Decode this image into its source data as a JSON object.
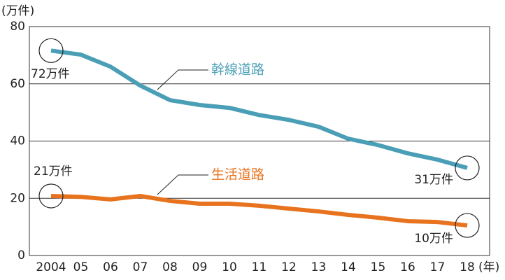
{
  "chart_data": {
    "type": "line",
    "y_unit_label": "(万件)",
    "x_unit_label": "(年)",
    "categories": [
      "2004",
      "05",
      "06",
      "07",
      "08",
      "09",
      "10",
      "11",
      "12",
      "13",
      "14",
      "15",
      "16",
      "17",
      "18"
    ],
    "series": [
      {
        "name": "幹線道路",
        "color": "#4a9fb6",
        "values": [
          71.6,
          70.2,
          66,
          59.4,
          54.3,
          52.6,
          51.6,
          49.1,
          47.4,
          45,
          40.8,
          38.6,
          35.7,
          33.5,
          30.6
        ]
      },
      {
        "name": "生活道路",
        "color": "#e8731f",
        "values": [
          20.8,
          20.5,
          19.6,
          20.8,
          19.1,
          18.1,
          18.1,
          17.4,
          16.4,
          15.4,
          14.2,
          13.2,
          12,
          11.7,
          10.5
        ]
      }
    ],
    "annotations": [
      "72万件",
      "31万件",
      "21万件",
      "10万件"
    ],
    "ylim": [
      0,
      80
    ],
    "yticks": [
      0,
      20,
      40,
      60,
      80
    ],
    "grid": true
  }
}
